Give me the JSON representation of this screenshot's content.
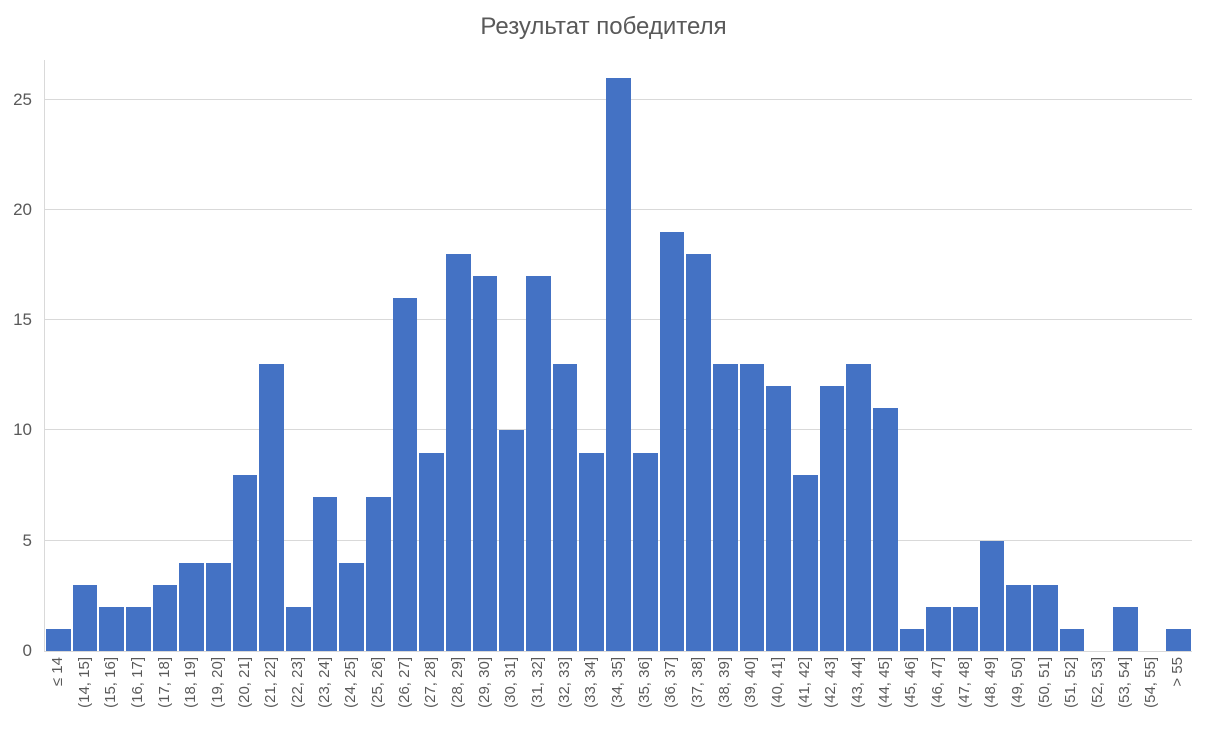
{
  "chart_data": {
    "type": "bar",
    "title": "Результат победителя",
    "categories": [
      "≤ 14",
      "(14, 15]",
      "(15, 16]",
      "(16, 17]",
      "(17, 18]",
      "(18, 19]",
      "(19, 20]",
      "(20, 21]",
      "(21, 22]",
      "(22, 23]",
      "(23, 24]",
      "(24, 25]",
      "(25, 26]",
      "(26, 27]",
      "(27, 28]",
      "(28, 29]",
      "(29, 30]",
      "(30, 31]",
      "(31, 32]",
      "(32, 33]",
      "(33, 34]",
      "(34, 35]",
      "(35, 36]",
      "(36, 37]",
      "(37, 38]",
      "(38, 39]",
      "(39, 40]",
      "(40, 41]",
      "(41, 42]",
      "(42, 43]",
      "(43, 44]",
      "(44, 45]",
      "(45, 46]",
      "(46, 47]",
      "(47, 48]",
      "(48, 49]",
      "(49, 50]",
      "(50, 51]",
      "(51, 52]",
      "(52, 53]",
      "(53, 54]",
      "(54, 55]",
      "> 55"
    ],
    "values": [
      1,
      3,
      2,
      2,
      3,
      4,
      4,
      8,
      13,
      2,
      7,
      4,
      7,
      16,
      9,
      18,
      17,
      10,
      17,
      13,
      9,
      26,
      9,
      19,
      18,
      13,
      13,
      12,
      8,
      12,
      13,
      11,
      1,
      2,
      2,
      5,
      3,
      3,
      1,
      0,
      2,
      0,
      1
    ],
    "xlabel": "",
    "ylabel": "",
    "yticks": [
      0,
      5,
      10,
      15,
      20,
      25
    ],
    "ylim": [
      0,
      26.8
    ],
    "grid": true,
    "legend": false,
    "bar_color": "#4472C4",
    "gridline_color": "#d9d9d9",
    "axis_color": "#d9d9d9",
    "text_color": "#595959"
  }
}
